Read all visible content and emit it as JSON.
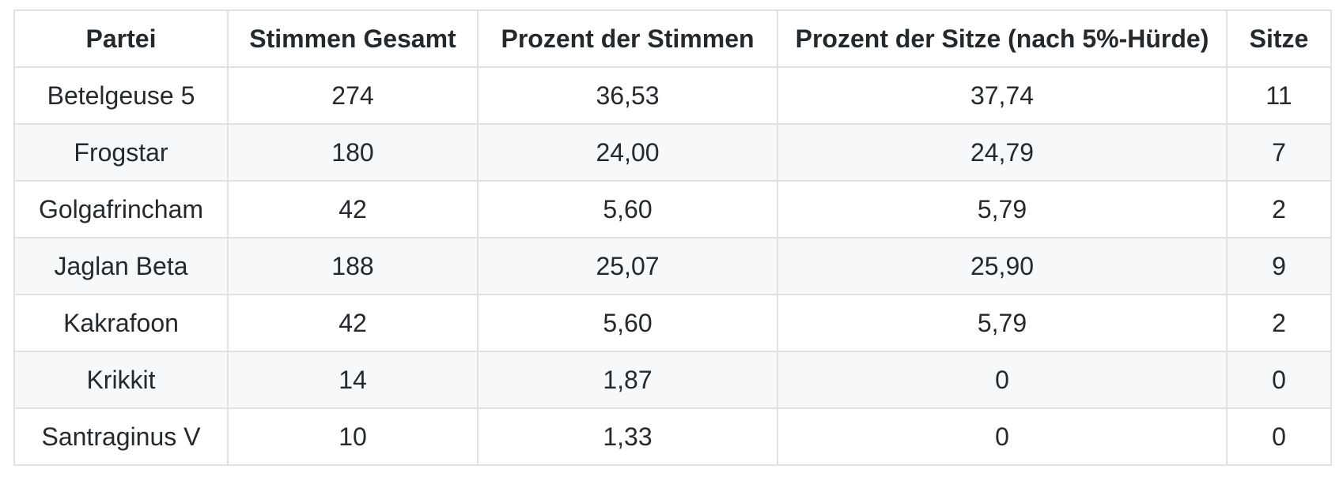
{
  "chart_data": {
    "type": "table",
    "columns": [
      "Partei",
      "Stimmen Gesamt",
      "Prozent der Stimmen",
      "Prozent der Sitze (nach 5%-Hürde)",
      "Sitze"
    ],
    "rows": [
      [
        "Betelgeuse 5",
        "274",
        "36,53",
        "37,74",
        "11"
      ],
      [
        "Frogstar",
        "180",
        "24,00",
        "24,79",
        "7"
      ],
      [
        "Golgafrincham",
        "42",
        "5,60",
        "5,79",
        "2"
      ],
      [
        "Jaglan Beta",
        "188",
        "25,07",
        "25,90",
        "9"
      ],
      [
        "Kakrafoon",
        "42",
        "5,60",
        "5,79",
        "2"
      ],
      [
        "Krikkit",
        "14",
        "1,87",
        "0",
        "0"
      ],
      [
        "Santraginus V",
        "10",
        "1,33",
        "0",
        "0"
      ]
    ],
    "layout": {
      "stripe_even_rows": true,
      "all_cells_bordered": true,
      "text_align": "center"
    },
    "colors": {
      "background": "#ffffff",
      "stripe": "#f6f8fa",
      "border": "#dfe2e5",
      "text": "#24292e"
    }
  }
}
